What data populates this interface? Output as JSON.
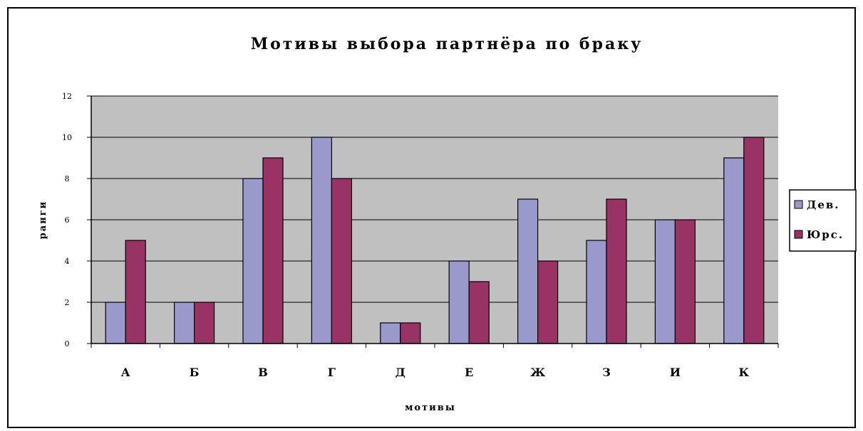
{
  "colors": {
    "plot_bg": "#c0c0c0",
    "series1": "#9999cc",
    "series2": "#993366",
    "grid": "#000000"
  },
  "chart_data": {
    "type": "bar",
    "title": "Мотивы выбора партнёра по браку",
    "xlabel": "мотивы",
    "ylabel": "ранги",
    "categories": [
      "А",
      "Б",
      "В",
      "Г",
      "Д",
      "Е",
      "Ж",
      "З",
      "И",
      "К"
    ],
    "series": [
      {
        "name": "Дев.",
        "values": [
          2,
          2,
          8,
          10,
          1,
          4,
          7,
          5,
          6,
          9
        ]
      },
      {
        "name": "Юрс.",
        "values": [
          5,
          2,
          9,
          8,
          1,
          3,
          4,
          7,
          6,
          10
        ]
      }
    ],
    "ylim": [
      0,
      12
    ],
    "yticks": [
      0,
      2,
      4,
      6,
      8,
      10,
      12
    ],
    "ytick_labels": [
      "0",
      "2",
      "4",
      "6",
      "8",
      "10",
      "12"
    ],
    "grid": true,
    "legend_position": "right"
  }
}
